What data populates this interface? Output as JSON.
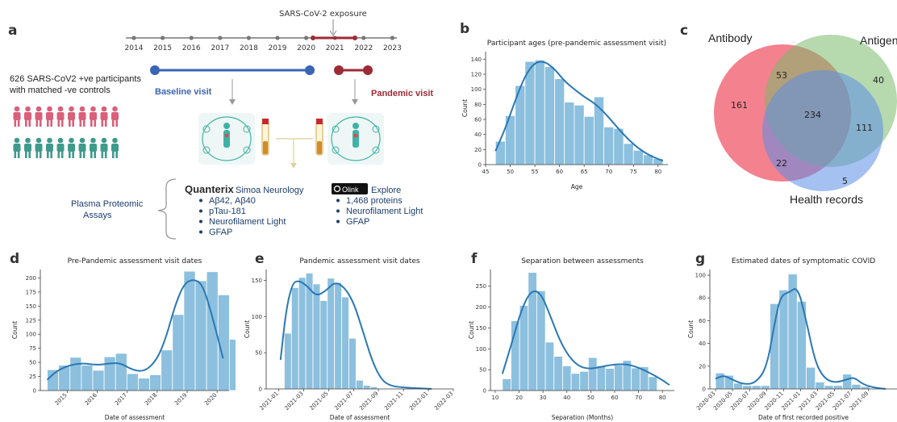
{
  "panels": {
    "a": "a",
    "b": "b",
    "c": "c",
    "d": "d",
    "e": "e",
    "f": "f",
    "g": "g"
  },
  "panel_a": {
    "exposure_label": "SARS-CoV-2 exposure",
    "years": [
      "2014",
      "2015",
      "2016",
      "2017",
      "2018",
      "2019",
      "2020",
      "2021",
      "2022",
      "2023"
    ],
    "participants_text_1": "626 SARS-CoV2 +ve participants",
    "participants_text_2": "with matched -ve controls",
    "baseline_visit": "Baseline visit",
    "pandemic_visit": "Pandemic visit",
    "plasma_1": "Plasma Proteomic",
    "plasma_2": "Assays",
    "quanterix_brand": "Quanterix",
    "quanterix_product": "Simoa Neurology",
    "quanterix_items": [
      "Aβ42, Aβ40",
      "pTau-181",
      "Neurofilament Light",
      "GFAP"
    ],
    "olink_brand": "Olink",
    "olink_product": "Explore",
    "olink_items": [
      "1,468 proteins",
      "Neurofilament Light",
      "GFAP"
    ],
    "colors": {
      "baseline": "#3a64b4",
      "pandemic": "#9e2a36",
      "person_red": "#d9607a",
      "person_teal": "#3f9a8c",
      "arrow": "#888888"
    }
  },
  "panel_c": {
    "labels": {
      "antibody": "Antibody",
      "antigen": "Antigen",
      "health": "Health records"
    },
    "regions": {
      "antibody_only": "161",
      "antibody_antigen": "53",
      "antigen_only": "40",
      "center": "234",
      "antigen_health": "111",
      "antibody_health": "22",
      "health_only": "5"
    },
    "colors": {
      "antibody": "#f26b7a",
      "antigen": "#7ab96a",
      "health": "#5b8ee8"
    }
  },
  "chart_data": [
    {
      "id": "b",
      "type": "bar",
      "title": "Participant ages (pre-pandemic assessment visit)",
      "xlabel": "Age",
      "ylabel": "Count",
      "xlim": [
        45,
        82
      ],
      "ylim": [
        0,
        150
      ],
      "xticks": [
        45,
        50,
        55,
        60,
        65,
        70,
        75,
        80
      ],
      "yticks": [
        0,
        20,
        40,
        60,
        80,
        100,
        120,
        140
      ],
      "bin_start": 47,
      "bin_width": 2,
      "values": [
        31,
        65,
        105,
        137,
        139,
        130,
        114,
        83,
        79,
        64,
        90,
        50,
        48,
        28,
        19,
        13,
        8
      ],
      "kde": [
        [
          47,
          18
        ],
        [
          49,
          48
        ],
        [
          51,
          85
        ],
        [
          53,
          118
        ],
        [
          55,
          136
        ],
        [
          57,
          137
        ],
        [
          59,
          127
        ],
        [
          61,
          111
        ],
        [
          63,
          100
        ],
        [
          65,
          90
        ],
        [
          67,
          82
        ],
        [
          69,
          70
        ],
        [
          71,
          55
        ],
        [
          73,
          40
        ],
        [
          75,
          27
        ],
        [
          77,
          17
        ],
        [
          79,
          10
        ],
        [
          81,
          5
        ]
      ]
    },
    {
      "id": "d",
      "type": "bar",
      "title": "Pre-Pandemic assessment visit dates",
      "xlabel": "Date of assessment",
      "ylabel": "Count",
      "xlim": [
        2014.1,
        2020.4
      ],
      "ylim": [
        0,
        215
      ],
      "xticks": [
        "2015",
        "2016",
        "2017",
        "2018",
        "2019",
        "2020"
      ],
      "xtick_values": [
        2015,
        2016,
        2017,
        2018,
        2019,
        2020
      ],
      "yticks": [
        0,
        25,
        50,
        75,
        100,
        125,
        150,
        175,
        200
      ],
      "bin_start": 2014.33,
      "bin_width": 0.38,
      "values": [
        37,
        45,
        59,
        45,
        36,
        60,
        66,
        30,
        22,
        28,
        72,
        135,
        212,
        195,
        211,
        170,
        91
      ],
      "kde": [
        [
          2014.33,
          19
        ],
        [
          2014.6,
          33
        ],
        [
          2015,
          44
        ],
        [
          2015.5,
          49
        ],
        [
          2016,
          45
        ],
        [
          2016.5,
          49
        ],
        [
          2016.8,
          48
        ],
        [
          2017.2,
          36
        ],
        [
          2017.6,
          34
        ],
        [
          2018,
          55
        ],
        [
          2018.3,
          95
        ],
        [
          2018.6,
          152
        ],
        [
          2018.9,
          190
        ],
        [
          2019.2,
          198
        ],
        [
          2019.5,
          190
        ],
        [
          2019.8,
          140
        ],
        [
          2020.2,
          57
        ]
      ]
    },
    {
      "id": "e",
      "type": "bar",
      "title": "Pandemic assessment visit dates",
      "xlabel": "Date of assessment",
      "ylabel": "Count",
      "xlim": [
        0,
        30
      ],
      "ylim": [
        0,
        165
      ],
      "xticks": [
        "2021-01",
        "2021-03",
        "2021-05",
        "2021-07",
        "2021-09",
        "2021-11",
        "2022-01",
        "2022-03"
      ],
      "xtick_values": [
        2,
        6,
        10,
        14,
        18,
        22,
        26,
        30
      ],
      "bin_start": 2.9,
      "bin_width": 1.15,
      "values": [
        77,
        140,
        154,
        160,
        145,
        122,
        153,
        147,
        127,
        70,
        12,
        5,
        3,
        1,
        1
      ],
      "kde": [
        [
          2.3,
          40
        ],
        [
          3.2,
          110
        ],
        [
          4.2,
          146
        ],
        [
          5.2,
          150
        ],
        [
          6.5,
          143
        ],
        [
          8,
          128
        ],
        [
          9.5,
          135
        ],
        [
          11,
          148
        ],
        [
          12.5,
          141
        ],
        [
          14,
          120
        ],
        [
          15.5,
          80
        ],
        [
          17,
          38
        ],
        [
          18.5,
          12
        ],
        [
          20,
          4
        ],
        [
          22,
          2
        ],
        [
          24,
          1
        ],
        [
          26.5,
          0
        ]
      ]
    },
    {
      "id": "f",
      "type": "bar",
      "title": "Separation between assessments",
      "xlabel": "Separation (Months)",
      "ylabel": "Count",
      "xlim": [
        8,
        85
      ],
      "ylim": [
        0,
        290
      ],
      "xticks": [
        10,
        20,
        30,
        40,
        50,
        60,
        70,
        80
      ],
      "yticks": [
        0,
        50,
        100,
        150,
        200,
        250
      ],
      "bin_start": 13,
      "bin_width": 3.6,
      "values": [
        28,
        167,
        204,
        283,
        239,
        116,
        82,
        59,
        41,
        46,
        79,
        59,
        53,
        61,
        72,
        54,
        57,
        33
      ],
      "kde": [
        [
          13,
          40
        ],
        [
          17,
          115
        ],
        [
          21,
          195
        ],
        [
          25,
          240
        ],
        [
          29,
          235
        ],
        [
          33,
          180
        ],
        [
          37,
          120
        ],
        [
          41,
          80
        ],
        [
          45,
          58
        ],
        [
          49,
          52
        ],
        [
          53,
          55
        ],
        [
          57,
          60
        ],
        [
          61,
          63
        ],
        [
          65,
          63
        ],
        [
          69,
          57
        ],
        [
          73,
          47
        ],
        [
          77,
          35
        ],
        [
          80,
          25
        ],
        [
          83,
          13
        ]
      ]
    },
    {
      "id": "g",
      "type": "bar",
      "title": "Estimated dates of symptomatic COVID",
      "xlabel": "Date of first recorded positive",
      "ylabel": "Count",
      "xlim": [
        0,
        33
      ],
      "ylim": [
        0,
        105
      ],
      "xticks": [
        "2020-03",
        "2020-05",
        "2020-07",
        "2020-09",
        "2020-11",
        "2021-01",
        "2021-03",
        "2021-05",
        "2021-07",
        "2021-09"
      ],
      "xtick_values": [
        1,
        4,
        7,
        10,
        13,
        16,
        19,
        22,
        25,
        28
      ],
      "yticks": [
        0,
        20,
        40,
        60,
        80,
        100
      ],
      "bin_start": 1,
      "bin_width": 1.6,
      "values": [
        14,
        12,
        5,
        3,
        3,
        3,
        75,
        87,
        101,
        77,
        19,
        6,
        3,
        3,
        13,
        4,
        2
      ],
      "kde": [
        [
          1,
          9
        ],
        [
          2.5,
          12
        ],
        [
          4,
          8
        ],
        [
          6,
          4
        ],
        [
          8,
          5
        ],
        [
          10,
          18
        ],
        [
          11.5,
          60
        ],
        [
          12.5,
          82
        ],
        [
          14,
          85
        ],
        [
          15.5,
          90
        ],
        [
          17,
          60
        ],
        [
          18.5,
          25
        ],
        [
          20,
          10
        ],
        [
          22,
          5
        ],
        [
          24.5,
          9
        ],
        [
          25.5,
          10
        ],
        [
          27,
          4
        ],
        [
          29,
          1
        ],
        [
          31,
          0
        ]
      ]
    }
  ]
}
